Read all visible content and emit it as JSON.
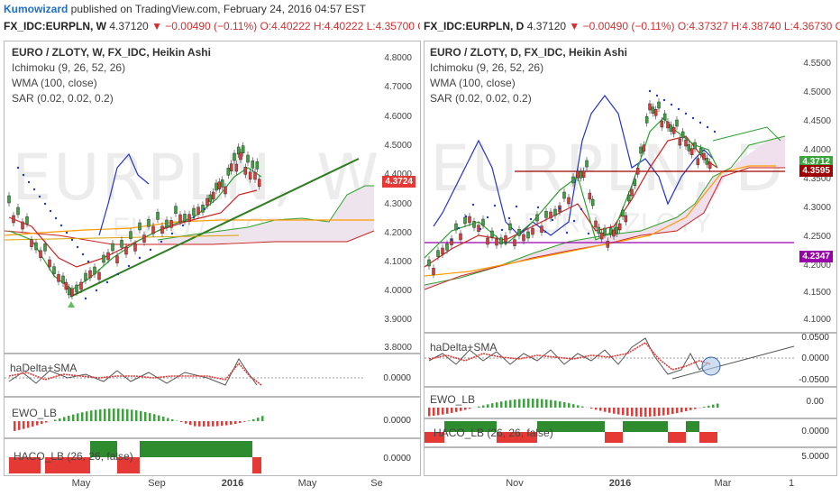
{
  "header": {
    "author": "Kumowizard",
    "text": " published on TradingView.com, February 24, 2016 04:57 EST"
  },
  "left": {
    "symbol": "FX_IDC:EURPLN, W",
    "price": "4.37120",
    "change": "▼ −0.00490 (−0.11%)",
    "ohlc": "O:4.40222  H:4.40222  L:4.35700  C:4.",
    "title": "EURO / ZLOTY, W, FX_IDC, Heikin Ashi",
    "studies": [
      "Ichimoku (9, 26, 52, 26)",
      "WMA (100, close)",
      "SAR (0.02, 0.02, 0.2)"
    ],
    "watermark": "EURPLN, W",
    "watermark2": "EURO / ZLOTY",
    "yticks": [
      "4.8000",
      "4.7000",
      "4.6000",
      "4.5000",
      "4.4000",
      "4.3000",
      "4.2000",
      "4.1000",
      "4.0000",
      "3.9000",
      "3.8000"
    ],
    "price_badge": "4.3724",
    "sub1": "haDelta+SMA",
    "sub1_tick": "0.0000",
    "sub2": "EWO_LB",
    "sub2_tick": "0.0000",
    "sub3": "HACO_LB (26, 26, false)",
    "sub3_tick": "0.0000",
    "xticks": [
      "May",
      "Sep",
      "2016",
      "May",
      "Se"
    ]
  },
  "right": {
    "symbol": "FX_IDC:EURPLN, D",
    "price": "4.37120",
    "change": "▼ −0.00490 (−0.11%)",
    "ohlc": "O:4.37327  H:4.38740  L:4.36730  C:4.3",
    "title": "EURO / ZLOTY, D, FX_IDC, Heikin Ashi",
    "studies": [
      "Ichimoku (9, 26, 52, 26)",
      "WMA (100, close)",
      "SAR (0.02, 0.02, 0.2)"
    ],
    "watermark": "EURPLN, D",
    "watermark2": "EURO / ZLOTY",
    "yticks": [
      "4.5500",
      "4.5000",
      "4.4500",
      "4.4000",
      "4.3500",
      "4.3000",
      "4.2500",
      "4.2000",
      "4.1500",
      "4.1000"
    ],
    "badge_top": "4.3712",
    "badge_mid": "4.3595",
    "badge_low": "4.2347",
    "sub1": "haDelta+SMA",
    "sub1_ticks": [
      "0.0500",
      "0.0000",
      "-0.0500"
    ],
    "sub2": "EWO_LB",
    "sub2_tick": "0.00",
    "sub3": "HACO_LB (26, 26, false)",
    "sub3_tick": "0.0000",
    "sub4_tick": "5.0000",
    "xticks": [
      "Nov",
      "2016",
      "Mar",
      "1"
    ]
  },
  "colors": {
    "up": "#3aa53a",
    "down": "#e53935",
    "kijun": "#cc2222",
    "tenkan": "#2ca02c",
    "chikou": "#2233cc",
    "wma": "#ff9900",
    "trend": "#2e7d1f",
    "cloud": "#f0e0ee",
    "hline_red": "#a00000",
    "hline_purple": "#9900aa"
  }
}
